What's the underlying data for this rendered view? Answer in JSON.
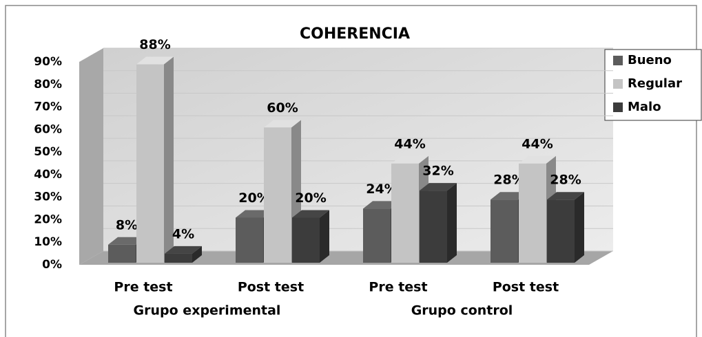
{
  "chart_data": {
    "type": "bar",
    "title": "COHERENCIA",
    "categories": [
      "Pre test",
      "Post test",
      "Pre test",
      "Post test"
    ],
    "groups": [
      "Grupo experimental",
      "Grupo control"
    ],
    "series": [
      {
        "name": "Bueno",
        "color": "#5c5c5c",
        "values": [
          8,
          20,
          24,
          28
        ],
        "value_labels": [
          "8%",
          "20%",
          "24%",
          "28%"
        ]
      },
      {
        "name": "Regular",
        "color": "#c4c4c4",
        "values": [
          88,
          60,
          44,
          44
        ],
        "value_labels": [
          "88%",
          "60%",
          "44%",
          "44%"
        ]
      },
      {
        "name": "Malo",
        "color": "#3c3c3c",
        "values": [
          4,
          20,
          32,
          28
        ],
        "value_labels": [
          "4%",
          "20%",
          "32%",
          "28%"
        ]
      }
    ],
    "ylim": [
      0,
      90
    ],
    "yticks": [
      {
        "value": 0,
        "label": "0%"
      },
      {
        "value": 10,
        "label": "10%"
      },
      {
        "value": 20,
        "label": "20%"
      },
      {
        "value": 30,
        "label": "30%"
      },
      {
        "value": 40,
        "label": "40%"
      },
      {
        "value": 50,
        "label": "50%"
      },
      {
        "value": 60,
        "label": "60%"
      },
      {
        "value": 70,
        "label": "70%"
      },
      {
        "value": 80,
        "label": "80%"
      },
      {
        "value": 90,
        "label": "90%"
      }
    ],
    "grid": true,
    "legend": "right"
  }
}
